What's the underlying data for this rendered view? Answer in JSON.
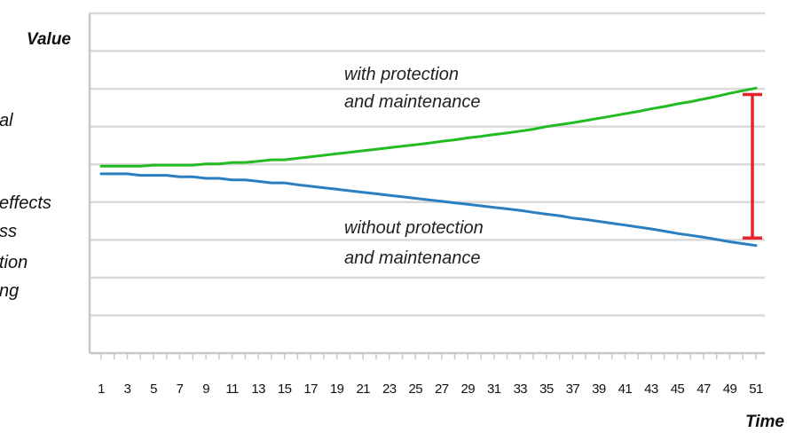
{
  "chart_data": {
    "type": "line",
    "title": "",
    "ylabel": "Value",
    "xlabel": "Time",
    "x": [
      1,
      2,
      3,
      4,
      5,
      6,
      7,
      8,
      9,
      10,
      11,
      12,
      13,
      14,
      15,
      16,
      17,
      18,
      19,
      20,
      21,
      22,
      23,
      24,
      25,
      26,
      27,
      28,
      29,
      30,
      31,
      32,
      33,
      34,
      35,
      36,
      37,
      38,
      39,
      40,
      41,
      42,
      43,
      44,
      45,
      46,
      47,
      48,
      49,
      50,
      51
    ],
    "x_tick_labels": [
      "1",
      "3",
      "5",
      "7",
      "9",
      "11",
      "13",
      "15",
      "17",
      "19",
      "21",
      "23",
      "25",
      "27",
      "29",
      "31",
      "33",
      "35",
      "37",
      "39",
      "41",
      "43",
      "45",
      "47",
      "49",
      "51"
    ],
    "ylim": [
      0,
      9
    ],
    "gridlines": 9,
    "y_tick_labels_shown": false,
    "series": [
      {
        "color": "#22bb22",
        "values": [
          4.95,
          4.95,
          4.95,
          4.95,
          4.98,
          4.98,
          4.98,
          4.98,
          5.01,
          5.01,
          5.05,
          5.05,
          5.08,
          5.12,
          5.12,
          5.16,
          5.2,
          5.24,
          5.28,
          5.32,
          5.36,
          5.4,
          5.44,
          5.48,
          5.52,
          5.56,
          5.61,
          5.65,
          5.7,
          5.74,
          5.79,
          5.83,
          5.88,
          5.93,
          6.0,
          6.05,
          6.1,
          6.16,
          6.22,
          6.28,
          6.34,
          6.4,
          6.47,
          6.53,
          6.6,
          6.66,
          6.73,
          6.8,
          6.88,
          6.95,
          7.02
        ]
      },
      {
        "color": "#2a7fc0",
        "values": [
          4.75,
          4.75,
          4.75,
          4.71,
          4.71,
          4.71,
          4.67,
          4.67,
          4.63,
          4.63,
          4.59,
          4.59,
          4.55,
          4.51,
          4.51,
          4.46,
          4.42,
          4.38,
          4.34,
          4.3,
          4.26,
          4.22,
          4.18,
          4.14,
          4.1,
          4.06,
          4.02,
          3.98,
          3.94,
          3.9,
          3.86,
          3.82,
          3.78,
          3.73,
          3.68,
          3.64,
          3.58,
          3.54,
          3.49,
          3.44,
          3.39,
          3.34,
          3.29,
          3.23,
          3.17,
          3.12,
          3.07,
          3.01,
          2.95,
          2.9,
          2.85
        ]
      }
    ],
    "annotations": [
      {
        "lines": [
          "with protection",
          "and maintenance"
        ]
      },
      {
        "lines": [
          "without protection",
          "and maintenance"
        ]
      }
    ],
    "side_text": [
      "al",
      "effects",
      "ss",
      "tion",
      "ng"
    ],
    "gap_marker": {
      "x": 51,
      "y_top": 6.85,
      "y_bottom": 3.05,
      "color": "#e8202a"
    }
  },
  "colors": {
    "grid": "#d9d9d9",
    "axis": "#c8c8c8"
  }
}
